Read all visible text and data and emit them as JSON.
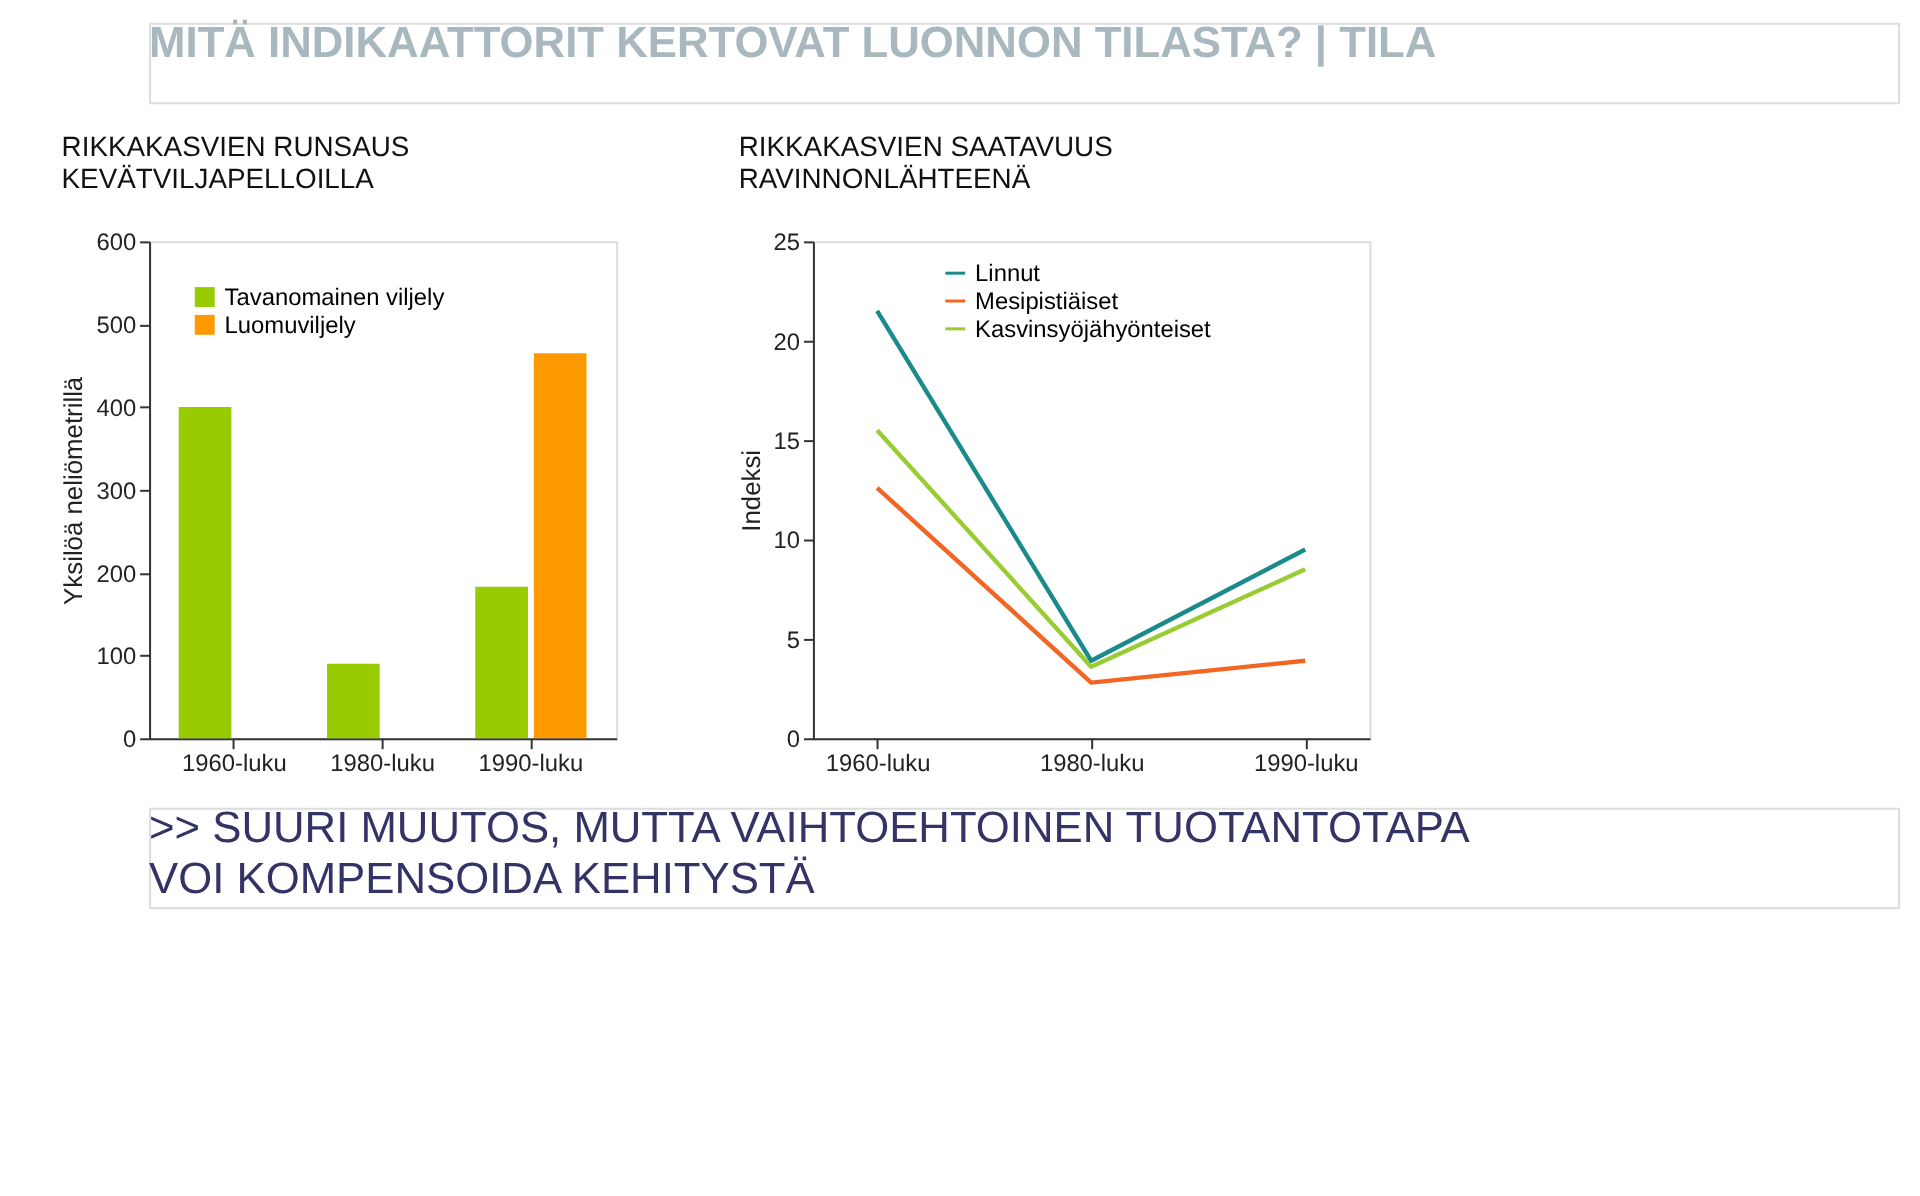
{
  "chart_data": [
    {
      "type": "bar",
      "title": "RIKKAKASVIEN RUNSAUS\nKEVÄTVILJAPELLOILLA",
      "ylabel": "Yksilöä neliömetrillä",
      "categories": [
        "1960-luku",
        "1980-luku",
        "1990-luku"
      ],
      "series": [
        {
          "name": "Tavanomainen viljely",
          "color": "#99cc00",
          "values": [
            400,
            90,
            183
          ]
        },
        {
          "name": "Luomuviljely",
          "color": "#ff9900",
          "values": [
            null,
            null,
            465
          ]
        }
      ],
      "ylim": [
        0,
        600
      ],
      "yticks": [
        0,
        100,
        200,
        300,
        400,
        500,
        600
      ],
      "grid": false,
      "legend": "top left",
      "annotations": [
        "MITÄ INDIKAATTORIT KERTOVAT LUONNON TILASTA? | TILA",
        ">> SUURI MUUTOS, MUTTA VAIHTOEHTOINEN TUOTANTOTAPA\nVOI KOMPENSOIDA KEHITYSTÄ"
      ]
    },
    {
      "type": "line",
      "title": "RIKKAKASVIEN SAATAVUUS\nRAVINNONLÄHTEENÄ",
      "ylabel": "Indeksi",
      "categories": [
        "1960-luku",
        "1980-luku",
        "1990-luku"
      ],
      "series": [
        {
          "name": "Linnut",
          "color": "#1a8a8a",
          "values": [
            21.5,
            3.9,
            9.5
          ]
        },
        {
          "name": "Mesipistiäiset",
          "color": "#f26522",
          "values": [
            12.6,
            2.8,
            3.9
          ]
        },
        {
          "name": "Kasvinsyöjähyönteiset",
          "color": "#99cc33",
          "values": [
            15.5,
            3.6,
            8.5
          ]
        }
      ],
      "ylim": [
        0,
        25
      ],
      "yticks": [
        0,
        5,
        10,
        15,
        20,
        25
      ],
      "grid": false,
      "legend": "top left",
      "marker": "none",
      "line_style": "solid"
    }
  ]
}
